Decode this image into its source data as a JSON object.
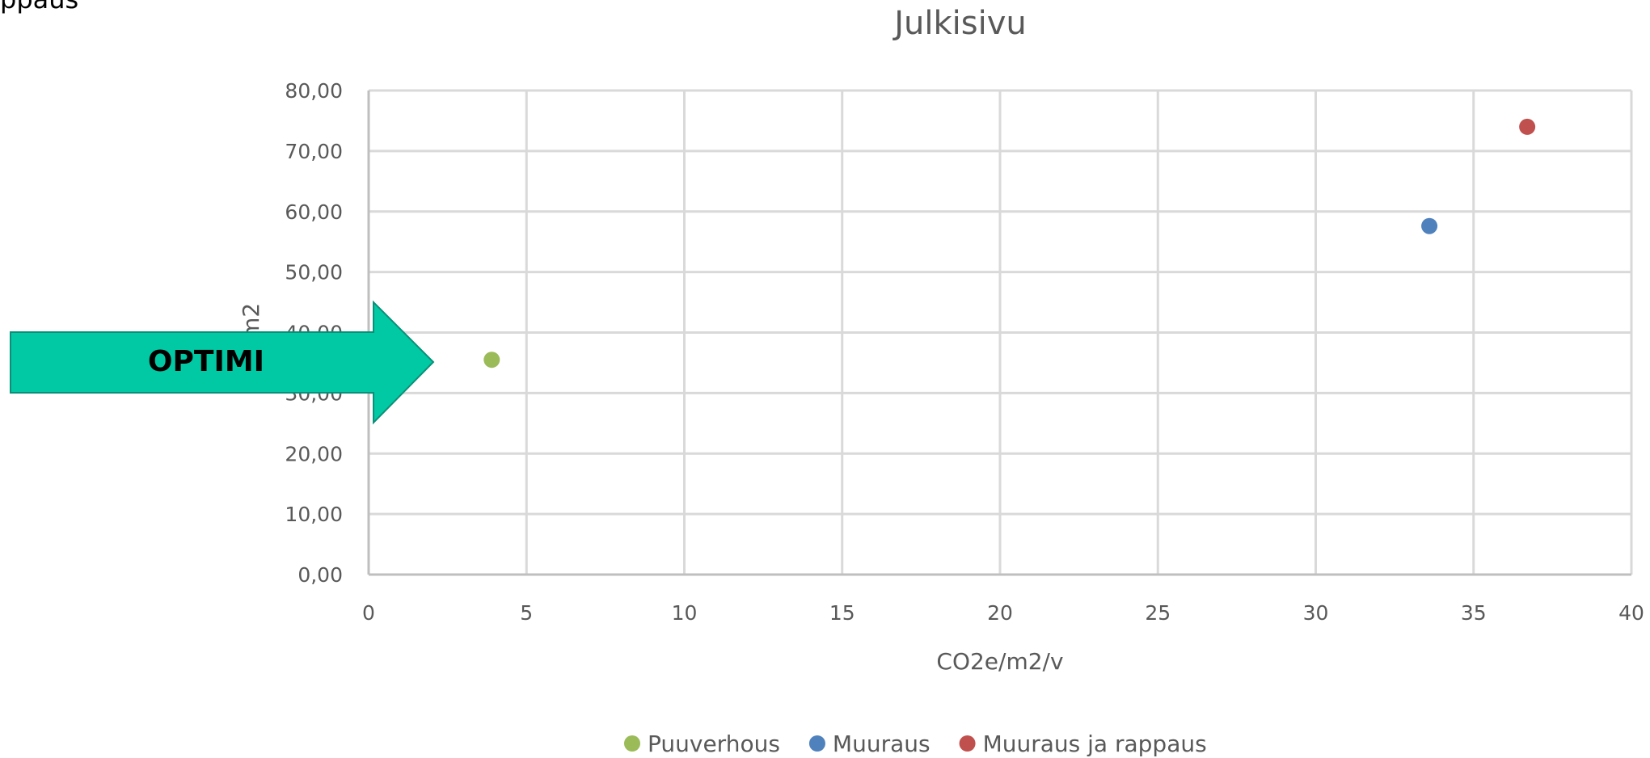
{
  "chart_data": {
    "type": "scatter",
    "title": "Julkisivu",
    "x_label": "CO2e/m2/v",
    "y_label": "€/m2",
    "annotations": [
      "ppaus",
      "OPTIMI"
    ],
    "series": [
      {
        "name": "Puuverhous",
        "color": "#9bbb59",
        "x": [
          3.9
        ],
        "values": [
          35.5
        ]
      },
      {
        "name": "Muuraus",
        "color": "#4f81bd",
        "x": [
          33.6
        ],
        "values": [
          57.6
        ]
      },
      {
        "name": "Muuraus ja rappaus",
        "color": "#c0504d",
        "x": [
          36.7
        ],
        "values": [
          74.0
        ]
      }
    ],
    "xlim": [
      0,
      40
    ],
    "xticks": [
      0,
      5,
      10,
      15,
      20,
      25,
      30,
      35,
      40
    ],
    "ylim": [
      0,
      80
    ],
    "yticks": [
      {
        "value": 0,
        "label": "0,00"
      },
      {
        "value": 10,
        "label": "10,00"
      },
      {
        "value": 20,
        "label": "20,00"
      },
      {
        "value": 30,
        "label": "30,00"
      },
      {
        "value": 40,
        "label": "40,00"
      },
      {
        "value": 50,
        "label": "50,00"
      },
      {
        "value": 60,
        "label": "60,00"
      },
      {
        "value": 70,
        "label": "70,00"
      },
      {
        "value": 80,
        "label": "80,00"
      }
    ],
    "grid": true,
    "legend": "bottom"
  }
}
